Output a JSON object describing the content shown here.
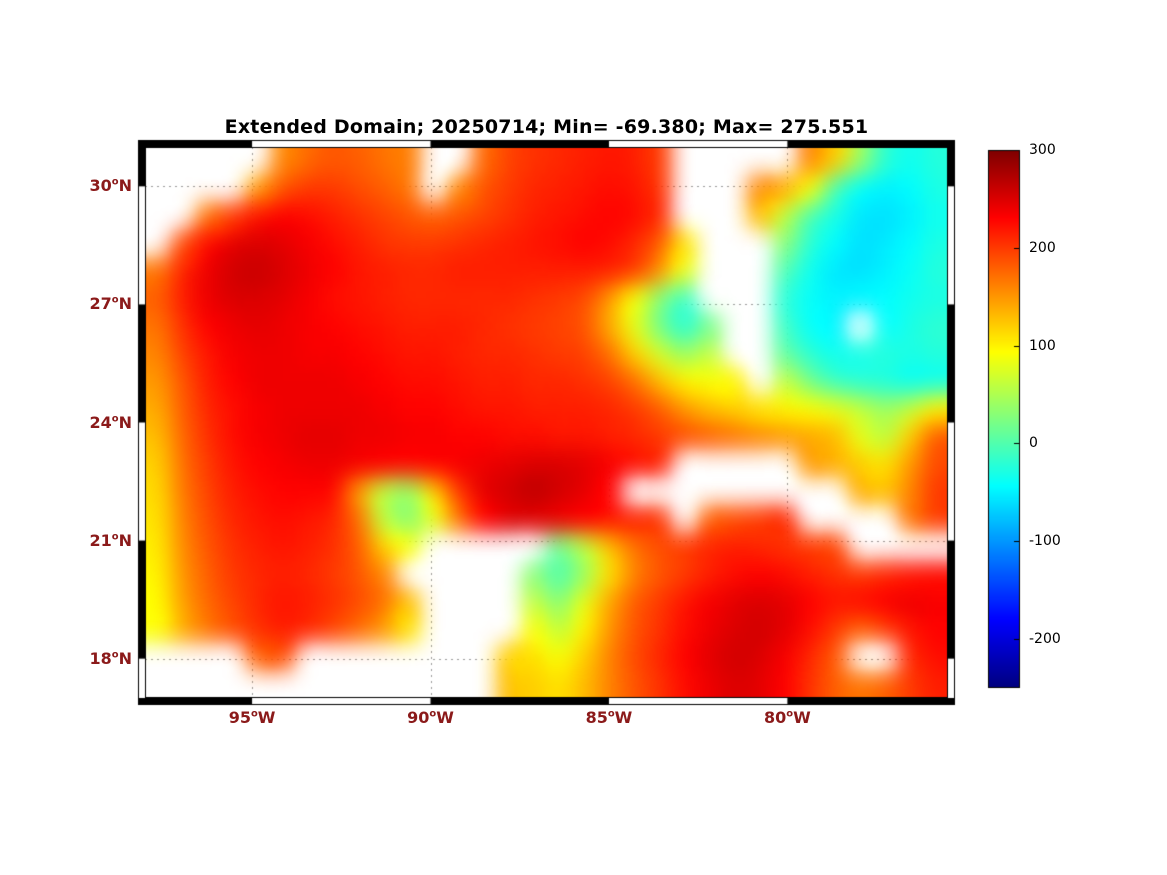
{
  "chart_data": {
    "type": "heatmap",
    "title": "Extended Domain; 20250714; Min= -69.380; Max= 275.551",
    "date": "20250714",
    "min": -69.38,
    "max": 275.551,
    "colormap": "jet",
    "colorbar": {
      "vmin": -250,
      "vmax": 300,
      "tick_values": [
        300,
        200,
        100,
        0,
        -100,
        -200
      ]
    },
    "axes": {
      "lon_range": [
        -98.0,
        -75.5
      ],
      "lat_range": [
        17.0,
        31.0
      ],
      "xticks": [
        {
          "deg": "95",
          "hemi": "W",
          "lon": -95
        },
        {
          "deg": "90",
          "hemi": "W",
          "lon": -90
        },
        {
          "deg": "85",
          "hemi": "W",
          "lon": -85
        },
        {
          "deg": "80",
          "hemi": "W",
          "lon": -80
        }
      ],
      "yticks": [
        {
          "deg": "30",
          "hemi": "N",
          "lat": 30
        },
        {
          "deg": "27",
          "hemi": "N",
          "lat": 27
        },
        {
          "deg": "24",
          "hemi": "N",
          "lat": 24
        },
        {
          "deg": "21",
          "hemi": "N",
          "lat": 21
        },
        {
          "deg": "18",
          "hemi": "N",
          "lat": 18
        }
      ],
      "tick_color": "#8b1a1a",
      "grid_style": "dotted",
      "grid_color": "#9a9a9a"
    },
    "grid": {
      "note_nulls_are_land": true,
      "ncols": 32,
      "nrows": 20,
      "lon_min": -98.0,
      "lon_max": -75.5,
      "lat_min": 17.0,
      "lat_max": 31.0,
      "values": [
        [
          null,
          null,
          null,
          null,
          null,
          160,
          175,
          185,
          180,
          170,
          165,
          null,
          null,
          175,
          195,
          205,
          210,
          215,
          220,
          215,
          200,
          null,
          null,
          null,
          null,
          null,
          160,
          120,
          40,
          -20,
          -35,
          -25
        ],
        [
          null,
          null,
          null,
          null,
          150,
          185,
          200,
          200,
          190,
          180,
          170,
          null,
          160,
          185,
          200,
          210,
          215,
          220,
          225,
          220,
          205,
          null,
          null,
          null,
          160,
          140,
          90,
          0,
          -40,
          -50,
          -45,
          -30
        ],
        [
          null,
          null,
          170,
          200,
          220,
          230,
          225,
          215,
          205,
          195,
          185,
          180,
          185,
          195,
          205,
          215,
          220,
          225,
          230,
          225,
          210,
          null,
          null,
          null,
          130,
          60,
          0,
          -30,
          -55,
          -60,
          -50,
          -35
        ],
        [
          null,
          190,
          225,
          245,
          250,
          245,
          235,
          225,
          215,
          205,
          200,
          200,
          205,
          210,
          215,
          220,
          225,
          230,
          225,
          210,
          180,
          110,
          null,
          null,
          null,
          30,
          -20,
          -45,
          -60,
          -55,
          -45,
          -30
        ],
        [
          170,
          210,
          240,
          255,
          260,
          250,
          240,
          230,
          220,
          215,
          210,
          210,
          215,
          215,
          215,
          215,
          215,
          215,
          210,
          195,
          150,
          80,
          null,
          null,
          null,
          0,
          -35,
          -55,
          -60,
          -50,
          -40,
          -25
        ],
        [
          180,
          215,
          240,
          250,
          250,
          245,
          235,
          225,
          220,
          215,
          210,
          210,
          210,
          210,
          210,
          205,
          200,
          190,
          150,
          90,
          30,
          -10,
          null,
          null,
          null,
          -20,
          -40,
          -50,
          -50,
          -45,
          -35,
          -30
        ],
        [
          170,
          205,
          230,
          240,
          245,
          240,
          235,
          230,
          225,
          220,
          215,
          215,
          215,
          210,
          205,
          200,
          195,
          185,
          140,
          80,
          20,
          -20,
          20,
          null,
          null,
          -10,
          -40,
          -50,
          null,
          -40,
          -30,
          -20
        ],
        [
          160,
          195,
          220,
          235,
          240,
          240,
          235,
          235,
          230,
          225,
          220,
          220,
          215,
          210,
          210,
          205,
          200,
          195,
          170,
          120,
          70,
          40,
          60,
          null,
          null,
          10,
          -20,
          -35,
          -30,
          -25,
          -30,
          -25
        ],
        [
          150,
          185,
          215,
          230,
          240,
          240,
          240,
          240,
          235,
          230,
          225,
          225,
          220,
          215,
          215,
          210,
          210,
          205,
          195,
          170,
          130,
          100,
          90,
          100,
          null,
          60,
          20,
          -10,
          -20,
          -25,
          -35,
          -30
        ],
        [
          140,
          180,
          210,
          225,
          235,
          240,
          240,
          240,
          240,
          235,
          230,
          230,
          225,
          220,
          220,
          215,
          215,
          215,
          210,
          200,
          180,
          150,
          130,
          120,
          110,
          100,
          90,
          80,
          60,
          40,
          60,
          100
        ],
        [
          130,
          175,
          205,
          225,
          235,
          240,
          245,
          245,
          240,
          240,
          235,
          235,
          230,
          230,
          225,
          225,
          220,
          220,
          215,
          210,
          200,
          190,
          180,
          170,
          160,
          150,
          140,
          130,
          80,
          60,
          120,
          180
        ],
        [
          120,
          170,
          200,
          220,
          230,
          235,
          240,
          240,
          235,
          230,
          225,
          230,
          235,
          240,
          245,
          250,
          250,
          245,
          235,
          225,
          215,
          null,
          null,
          null,
          null,
          null,
          150,
          140,
          120,
          110,
          150,
          190
        ],
        [
          115,
          165,
          195,
          215,
          225,
          230,
          230,
          225,
          150,
          60,
          40,
          120,
          200,
          245,
          255,
          265,
          255,
          245,
          230,
          null,
          null,
          null,
          null,
          null,
          null,
          null,
          null,
          null,
          140,
          130,
          160,
          200
        ],
        [
          110,
          160,
          190,
          210,
          220,
          225,
          220,
          210,
          170,
          60,
          30,
          80,
          170,
          230,
          250,
          250,
          240,
          230,
          220,
          215,
          205,
          null,
          180,
          190,
          200,
          210,
          null,
          null,
          null,
          null,
          170,
          200
        ],
        [
          105,
          155,
          185,
          205,
          215,
          220,
          215,
          205,
          180,
          120,
          90,
          null,
          null,
          null,
          null,
          null,
          20,
          60,
          130,
          170,
          190,
          200,
          210,
          215,
          210,
          205,
          200,
          195,
          null,
          null,
          null,
          null
        ],
        [
          100,
          150,
          180,
          200,
          210,
          215,
          210,
          200,
          185,
          160,
          null,
          null,
          null,
          null,
          null,
          30,
          0,
          40,
          110,
          160,
          185,
          200,
          215,
          225,
          230,
          225,
          215,
          205,
          200,
          210,
          220,
          225
        ],
        [
          95,
          145,
          175,
          195,
          210,
          220,
          215,
          205,
          190,
          170,
          130,
          null,
          null,
          null,
          null,
          60,
          30,
          80,
          140,
          180,
          200,
          220,
          235,
          245,
          250,
          245,
          230,
          220,
          225,
          235,
          240,
          235
        ],
        [
          90,
          140,
          170,
          190,
          205,
          215,
          210,
          195,
          175,
          150,
          110,
          null,
          null,
          null,
          null,
          90,
          60,
          100,
          150,
          185,
          205,
          225,
          240,
          250,
          255,
          245,
          225,
          200,
          180,
          200,
          220,
          230
        ],
        [
          null,
          null,
          null,
          null,
          180,
          190,
          null,
          null,
          null,
          null,
          null,
          null,
          null,
          null,
          120,
          110,
          90,
          120,
          160,
          190,
          210,
          230,
          245,
          255,
          250,
          235,
          210,
          185,
          null,
          null,
          210,
          225
        ],
        [
          null,
          null,
          null,
          null,
          null,
          null,
          null,
          null,
          null,
          null,
          null,
          null,
          null,
          null,
          130,
          120,
          110,
          130,
          160,
          185,
          205,
          225,
          240,
          250,
          245,
          230,
          205,
          180,
          170,
          180,
          200,
          215
        ]
      ]
    }
  }
}
